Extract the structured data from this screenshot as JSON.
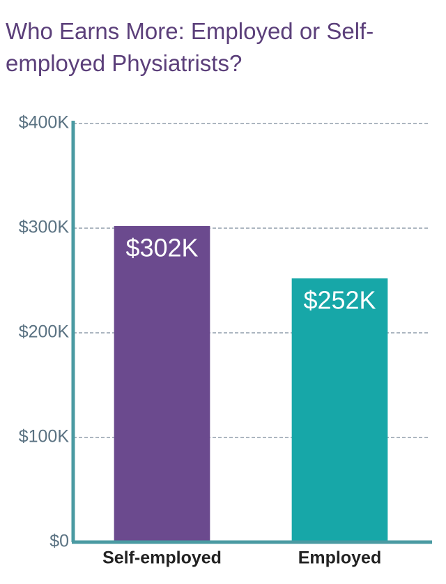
{
  "chart_data": {
    "type": "bar",
    "title": "Who Earns More: Employed or Self-employed Physiatrists?",
    "categories": [
      "Self-employed",
      "Employed"
    ],
    "series": [
      {
        "name": null,
        "colors": [
          "#6b4a8e",
          "#17a7a8"
        ],
        "values": [
          302000,
          252000
        ],
        "value_labels": [
          "$302K",
          "$252K"
        ]
      }
    ],
    "ylim": [
      0,
      400000
    ],
    "yticks": [
      {
        "value": 0,
        "label": "$0"
      },
      {
        "value": 100000,
        "label": "$100K"
      },
      {
        "value": 200000,
        "label": "$200K"
      },
      {
        "value": 300000,
        "label": "$300K"
      },
      {
        "value": 400000,
        "label": "$400K"
      }
    ],
    "grid": true
  }
}
